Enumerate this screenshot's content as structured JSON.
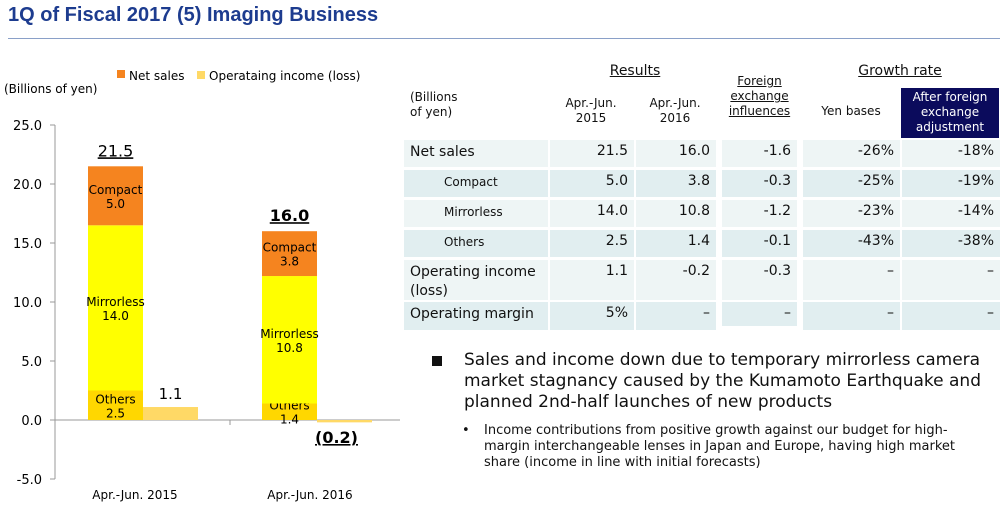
{
  "title": "1Q of Fiscal 2017 (5) Imaging Business",
  "chart_data": {
    "type": "bar",
    "stacked": true,
    "ylabel": "(Billions of yen)",
    "ylim": [
      -5,
      25
    ],
    "yticks": [
      "25.0",
      "20.0",
      "15.0",
      "10.0",
      "5.0",
      "0.0",
      "-5.0"
    ],
    "ytick_values": [
      25,
      20,
      15,
      10,
      5,
      0,
      -5
    ],
    "categories": [
      "Apr.-Jun. 2015",
      "Apr.-Jun. 2016"
    ],
    "legend": [
      {
        "name": "Net sales",
        "color": "#f5841f"
      },
      {
        "name": "Operataing income (loss)",
        "color": "#ffd966"
      }
    ],
    "net_sales_series": [
      {
        "name": "Others",
        "values": [
          2.5,
          1.4
        ],
        "color": "#ffd700",
        "labels": [
          "Others\n2.5",
          "Others\n1.4"
        ]
      },
      {
        "name": "Mirrorless",
        "values": [
          14.0,
          10.8
        ],
        "color": "#ffff00",
        "labels": [
          "Mirrorless\n14.0",
          "Mirrorless\n10.8"
        ]
      },
      {
        "name": "Compact",
        "values": [
          5.0,
          3.8
        ],
        "color": "#f5841f",
        "labels": [
          "Compact\n5.0",
          "Compact\n3.8"
        ]
      }
    ],
    "totals": [
      21.5,
      16.0
    ],
    "total_labels": [
      "21.5",
      "16.0"
    ],
    "operating_income": [
      1.1,
      -0.2
    ],
    "operating_income_labels": [
      "1.1",
      "(0.2)"
    ]
  },
  "table": {
    "unit": "(Billions of yen)",
    "results_header": "Results",
    "col_2015": "Apr.-Jun.\n2015",
    "col_2016": "Apr.-Jun.\n2016",
    "fx_header": "Foreign\nexchange\ninfluences",
    "growth_header": "Growth rate",
    "yen_bases": "Yen bases",
    "after_fx": "After foreign\nexchange\nadjustment",
    "rows": [
      {
        "label": "Net sales",
        "indent": false,
        "v2015": "21.5",
        "v2016": "16.0",
        "fx": "-1.6",
        "yen": "-26%",
        "adj": "-18%"
      },
      {
        "label": "Compact",
        "indent": true,
        "v2015": "5.0",
        "v2016": "3.8",
        "fx": "-0.3",
        "yen": "-25%",
        "adj": "-19%"
      },
      {
        "label": "Mirrorless",
        "indent": true,
        "v2015": "14.0",
        "v2016": "10.8",
        "fx": "-1.2",
        "yen": "-23%",
        "adj": "-14%"
      },
      {
        "label": "Others",
        "indent": true,
        "v2015": "2.5",
        "v2016": "1.4",
        "fx": "-0.1",
        "yen": "-43%",
        "adj": "-38%"
      },
      {
        "label": "Operating income\n(loss)",
        "indent": false,
        "v2015": "1.1",
        "v2016": "-0.2",
        "fx": "-0.3",
        "yen": "–",
        "adj": "–"
      },
      {
        "label": "Operating margin",
        "indent": false,
        "v2015": "5%",
        "v2016": "–",
        "fx": "–",
        "yen": "–",
        "adj": "–"
      }
    ]
  },
  "bullets": {
    "main": "Sales and income down due to temporary mirrorless camera market stagnancy caused by the Kumamoto Earthquake and planned 2nd-half launches of new products",
    "sub": "Income contributions from positive growth against our budget for high-margin interchangeable lenses in Japan and Europe, having high market share (income in line with initial forecasts)",
    "sub_marker": "•"
  }
}
